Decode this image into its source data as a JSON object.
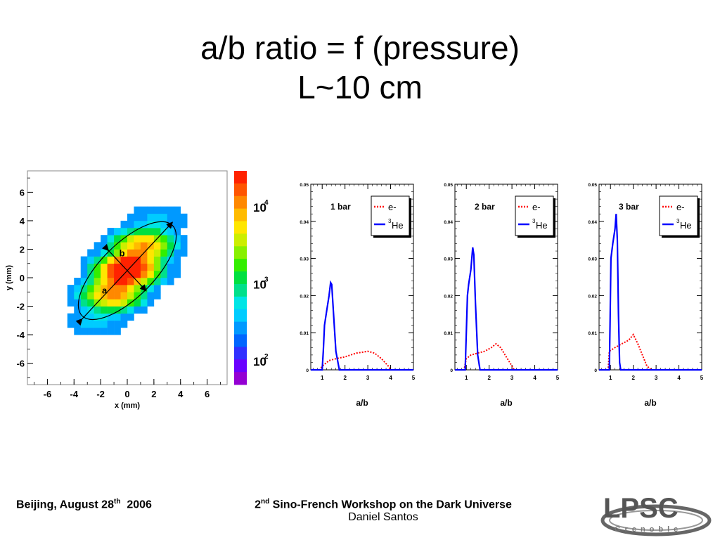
{
  "slide": {
    "title_line1": "a/b ratio = f (pressure)",
    "title_line2": "L~10 cm"
  },
  "footer": {
    "left_text": "Beijing,  August 28",
    "left_sup": "th",
    "left_year": "2006",
    "workshop_prefix": "2",
    "workshop_sup": "nd",
    "workshop_text": " Sino-French Workshop on the Dark Universe",
    "author": "Daniel Santos"
  },
  "logo": {
    "name": "lpsc-grenoble-logo",
    "text": "LPSC Grenoble"
  },
  "chart_data": [
    {
      "type": "heatmap",
      "xlabel": "x (mm)",
      "ylabel": "y (mm)",
      "xlim": [
        -7.5,
        7.5
      ],
      "ylim": [
        -7.5,
        7.5
      ],
      "xticks": [
        "-6",
        "-4",
        "-2",
        "0",
        "2",
        "4",
        "6"
      ],
      "yticks": [
        "6",
        "4",
        "2",
        "0",
        "-2",
        "-4",
        "-6"
      ],
      "colorbar": {
        "scale": "log",
        "ticks": [
          "10",
          "10",
          "10"
        ],
        "tick_exponents": [
          "4",
          "3",
          "2"
        ],
        "range": [
          50,
          30000
        ]
      },
      "annotations": {
        "major_axis_label": "a",
        "minor_axis_label": "b"
      },
      "ellipse": {
        "center": [
          0,
          0.5
        ],
        "major_semi_axis": 4.8,
        "minor_semi_axis": 2.0,
        "angle_deg": 45
      }
    },
    {
      "type": "line",
      "panel_label": "1 bar",
      "xlabel": "a/b",
      "xlim": [
        0.5,
        5
      ],
      "ylim": [
        0,
        0.05
      ],
      "xticks": [
        "1",
        "2",
        "3",
        "4",
        "5"
      ],
      "yticks": [
        "0",
        "0.01",
        "0.02",
        "0.03",
        "0.04",
        "0.05"
      ],
      "legend": {
        "placement": "top-right",
        "entries": [
          "e-",
          "He"
        ],
        "he_superscript": "3"
      },
      "series": [
        {
          "name": "e-",
          "color": "#ff0000",
          "style": "dotted",
          "x": [
            0.5,
            0.9,
            1.0,
            1.3,
            1.6,
            2.0,
            2.5,
            2.8,
            3.0,
            3.3,
            3.6,
            3.9,
            4.0,
            5.0
          ],
          "y": [
            0,
            0,
            0.001,
            0.0025,
            0.003,
            0.0035,
            0.0045,
            0.0048,
            0.005,
            0.0045,
            0.003,
            0.001,
            0,
            0
          ]
        },
        {
          "name": "3He",
          "color": "#0000ff",
          "style": "solid",
          "x": [
            0.5,
            1.0,
            1.05,
            1.1,
            1.2,
            1.3,
            1.37,
            1.42,
            1.5,
            1.6,
            1.75,
            5.0
          ],
          "y": [
            0,
            0,
            0.005,
            0.012,
            0.016,
            0.02,
            0.0235,
            0.023,
            0.015,
            0.005,
            0,
            0
          ]
        }
      ]
    },
    {
      "type": "line",
      "panel_label": "2 bar",
      "xlabel": "a/b",
      "xlim": [
        0.5,
        5
      ],
      "ylim": [
        0,
        0.05
      ],
      "xticks": [
        "1",
        "2",
        "3",
        "4",
        "5"
      ],
      "yticks": [
        "0",
        "0.01",
        "0.02",
        "0.03",
        "0.04",
        "0.05"
      ],
      "legend": {
        "placement": "top-right",
        "entries": [
          "e-",
          "He"
        ],
        "he_superscript": "3"
      },
      "series": [
        {
          "name": "e-",
          "color": "#ff0000",
          "style": "dotted",
          "x": [
            0.5,
            0.9,
            1.0,
            1.2,
            1.5,
            1.8,
            2.1,
            2.3,
            2.5,
            2.7,
            2.9,
            3.1,
            5.0
          ],
          "y": [
            0,
            0,
            0.003,
            0.004,
            0.0045,
            0.005,
            0.006,
            0.007,
            0.006,
            0.004,
            0.002,
            0,
            0
          ]
        },
        {
          "name": "3He",
          "color": "#0000ff",
          "style": "solid",
          "x": [
            0.5,
            0.95,
            1.0,
            1.05,
            1.1,
            1.2,
            1.28,
            1.33,
            1.4,
            1.5,
            1.6,
            5.0
          ],
          "y": [
            0,
            0,
            0.01,
            0.02,
            0.023,
            0.027,
            0.033,
            0.031,
            0.018,
            0.004,
            0,
            0
          ]
        }
      ]
    },
    {
      "type": "line",
      "panel_label": "3 bar",
      "xlabel": "a/b",
      "xlim": [
        0.5,
        5
      ],
      "ylim": [
        0,
        0.05
      ],
      "xticks": [
        "1",
        "2",
        "3",
        "4",
        "5"
      ],
      "yticks": [
        "0",
        "0.01",
        "0.02",
        "0.03",
        "0.04",
        "0.05"
      ],
      "legend": {
        "placement": "top-right",
        "entries": [
          "e-",
          "He"
        ],
        "he_superscript": "3"
      },
      "series": [
        {
          "name": "e-",
          "color": "#ff0000",
          "style": "dotted",
          "x": [
            0.5,
            0.9,
            0.95,
            1.2,
            1.5,
            1.8,
            2.0,
            2.2,
            2.4,
            2.6,
            2.8,
            5.0
          ],
          "y": [
            0,
            0,
            0.005,
            0.006,
            0.007,
            0.008,
            0.0095,
            0.007,
            0.004,
            0.001,
            0,
            0
          ]
        },
        {
          "name": "3He",
          "color": "#0000ff",
          "style": "solid",
          "x": [
            0.5,
            0.95,
            0.98,
            1.02,
            1.1,
            1.2,
            1.25,
            1.3,
            1.35,
            1.4,
            1.45,
            5.0
          ],
          "y": [
            0,
            0,
            0.012,
            0.03,
            0.034,
            0.038,
            0.042,
            0.035,
            0.015,
            0.002,
            0,
            0
          ]
        }
      ]
    }
  ]
}
